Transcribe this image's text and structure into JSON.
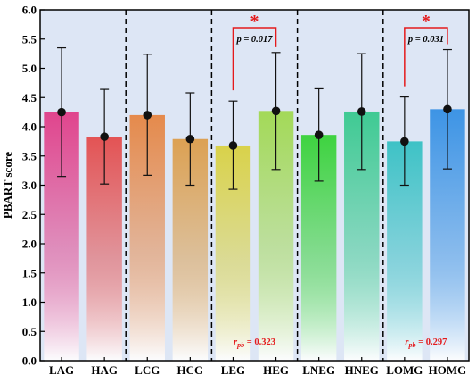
{
  "chart_data": {
    "type": "bar",
    "ylabel": "PBART score",
    "ylim": [
      0.0,
      6.0
    ],
    "yticks": [
      "0.0",
      "0.5",
      "1.0",
      "1.5",
      "2.0",
      "2.5",
      "3.0",
      "3.5",
      "4.0",
      "4.5",
      "5.0",
      "5.5",
      "6.0"
    ],
    "categories": [
      "LAG",
      "HAG",
      "LCG",
      "HCG",
      "LEG",
      "HEG",
      "LNEG",
      "HNEG",
      "LOMG",
      "HOMG"
    ],
    "values": [
      4.25,
      3.83,
      4.2,
      3.79,
      3.68,
      4.27,
      3.86,
      4.26,
      3.75,
      4.3
    ],
    "error_low": [
      3.15,
      3.02,
      3.17,
      3.0,
      2.93,
      3.27,
      3.07,
      3.27,
      3.0,
      3.28
    ],
    "error_high": [
      5.35,
      4.64,
      5.24,
      4.58,
      4.44,
      5.27,
      4.65,
      5.25,
      4.51,
      5.32
    ],
    "bar_colors": [
      "#e0458d",
      "#e35354",
      "#e58a4c",
      "#dca153",
      "#d9d24a",
      "#a3d958",
      "#3ed340",
      "#3fca93",
      "#3ec2c6",
      "#3d94e5"
    ],
    "group_dividers_after": [
      "HAG",
      "HCG",
      "HEG",
      "HNEG"
    ],
    "grid": false,
    "background": "#dde6f5",
    "comparisons": [
      {
        "pair": [
          "LEG",
          "HEG"
        ],
        "star": "*",
        "p_text": "p = 0.017",
        "rpb_prefix": "r",
        "rpb_sub": "pb",
        "rpb_value": " = 0.323"
      },
      {
        "pair": [
          "LOMG",
          "HOMG"
        ],
        "star": "*",
        "p_text": "p = 0.031",
        "rpb_prefix": "r",
        "rpb_sub": "pb",
        "rpb_value": " = 0.297"
      }
    ]
  }
}
